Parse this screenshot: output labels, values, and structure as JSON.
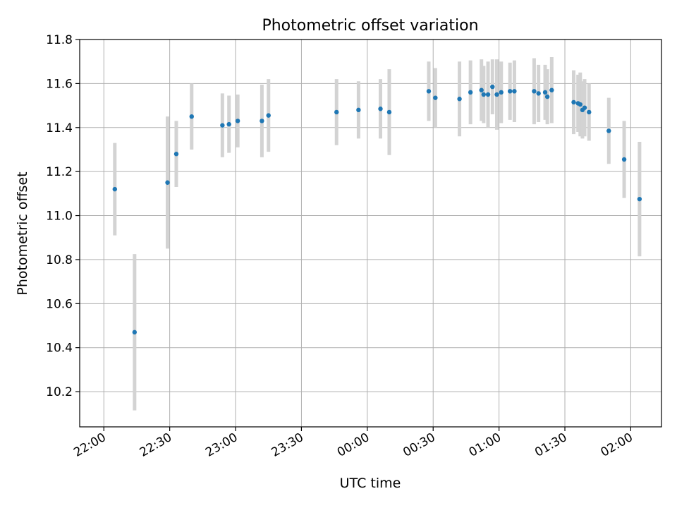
{
  "chart_data": {
    "type": "scatter",
    "title": "Photometric offset variation",
    "xlabel": "UTC time",
    "ylabel": "Photometric offset",
    "xlim_minutes_from_2200": [
      -11,
      254
    ],
    "ylim": [
      10.04,
      11.8
    ],
    "x_ticks": [
      "22:00",
      "22:30",
      "23:00",
      "23:30",
      "00:00",
      "00:30",
      "01:00",
      "01:30",
      "02:00"
    ],
    "y_ticks": [
      "10.2",
      "10.4",
      "10.6",
      "10.8",
      "11.0",
      "11.2",
      "11.4",
      "11.6",
      "11.8"
    ],
    "grid": true,
    "marker_color": "#1f77b4",
    "errorbar_color": "#d3d3d3",
    "points": [
      {
        "x": "22:05",
        "y": 11.12,
        "yerr": 0.21
      },
      {
        "x": "22:14",
        "y": 10.47,
        "yerr": 0.355
      },
      {
        "x": "22:29",
        "y": 11.15,
        "yerr": 0.3
      },
      {
        "x": "22:33",
        "y": 11.28,
        "yerr": 0.15
      },
      {
        "x": "22:40",
        "y": 11.45,
        "yerr": 0.15
      },
      {
        "x": "22:54",
        "y": 11.41,
        "yerr": 0.145
      },
      {
        "x": "22:57",
        "y": 11.415,
        "yerr": 0.13
      },
      {
        "x": "23:01",
        "y": 11.43,
        "yerr": 0.12
      },
      {
        "x": "23:12",
        "y": 11.43,
        "yerr": 0.165
      },
      {
        "x": "23:15",
        "y": 11.455,
        "yerr": 0.165
      },
      {
        "x": "23:46",
        "y": 11.47,
        "yerr": 0.15
      },
      {
        "x": "23:56",
        "y": 11.48,
        "yerr": 0.13
      },
      {
        "x": "00:06",
        "y": 11.485,
        "yerr": 0.135
      },
      {
        "x": "00:10",
        "y": 11.47,
        "yerr": 0.195
      },
      {
        "x": "00:28",
        "y": 11.565,
        "yerr": 0.135
      },
      {
        "x": "00:31",
        "y": 11.535,
        "yerr": 0.135
      },
      {
        "x": "00:42",
        "y": 11.53,
        "yerr": 0.17
      },
      {
        "x": "00:47",
        "y": 11.56,
        "yerr": 0.145
      },
      {
        "x": "00:52",
        "y": 11.57,
        "yerr": 0.14
      },
      {
        "x": "00:53",
        "y": 11.55,
        "yerr": 0.13
      },
      {
        "x": "00:55",
        "y": 11.55,
        "yerr": 0.15
      },
      {
        "x": "00:57",
        "y": 11.585,
        "yerr": 0.125
      },
      {
        "x": "00:59",
        "y": 11.55,
        "yerr": 0.16
      },
      {
        "x": "01:01",
        "y": 11.56,
        "yerr": 0.14
      },
      {
        "x": "01:05",
        "y": 11.565,
        "yerr": 0.13
      },
      {
        "x": "01:07",
        "y": 11.565,
        "yerr": 0.14
      },
      {
        "x": "01:16",
        "y": 11.565,
        "yerr": 0.15
      },
      {
        "x": "01:18",
        "y": 11.555,
        "yerr": 0.13
      },
      {
        "x": "01:21",
        "y": 11.56,
        "yerr": 0.125
      },
      {
        "x": "01:22",
        "y": 11.54,
        "yerr": 0.125
      },
      {
        "x": "01:24",
        "y": 11.57,
        "yerr": 0.15
      },
      {
        "x": "01:34",
        "y": 11.515,
        "yerr": 0.145
      },
      {
        "x": "01:36",
        "y": 11.51,
        "yerr": 0.13
      },
      {
        "x": "01:37",
        "y": 11.505,
        "yerr": 0.145
      },
      {
        "x": "01:38",
        "y": 11.48,
        "yerr": 0.13
      },
      {
        "x": "01:39",
        "y": 11.49,
        "yerr": 0.13
      },
      {
        "x": "01:41",
        "y": 11.47,
        "yerr": 0.13
      },
      {
        "x": "01:50",
        "y": 11.385,
        "yerr": 0.15
      },
      {
        "x": "01:57",
        "y": 11.255,
        "yerr": 0.175
      },
      {
        "x": "02:04",
        "y": 11.075,
        "yerr": 0.26
      }
    ]
  }
}
